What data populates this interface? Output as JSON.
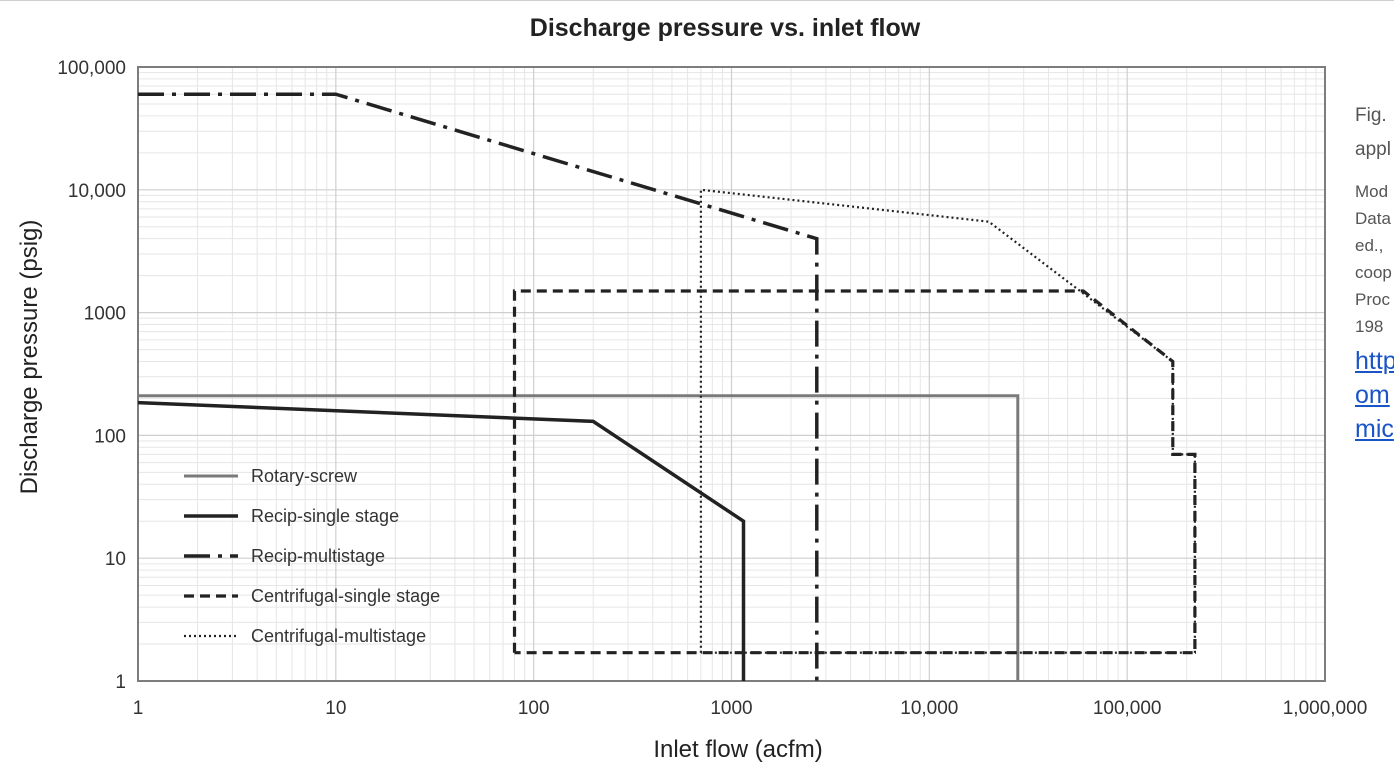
{
  "chart_data": {
    "type": "line",
    "title": "Discharge pressure vs. inlet flow",
    "xlabel": "Inlet flow (acfm)",
    "ylabel": "Discharge pressure (psig)",
    "x_scale": "log",
    "y_scale": "log",
    "xlim": [
      1,
      1000000
    ],
    "ylim": [
      1,
      100000
    ],
    "x_ticks": [
      1,
      10,
      100,
      1000,
      10000,
      100000,
      1000000
    ],
    "x_tick_labels": [
      "1",
      "10",
      "100",
      "1000",
      "10,000",
      "100,000",
      "1,000,000"
    ],
    "y_ticks": [
      1,
      10,
      100,
      1000,
      10000,
      100000
    ],
    "y_tick_labels": [
      "1",
      "10",
      "100",
      "1000",
      "10,000",
      "100,000"
    ],
    "grid": true,
    "legend_position": "lower-left",
    "series": [
      {
        "name": "Rotary-screw",
        "style": "solid-gray",
        "color": "#7a7a7a",
        "points": [
          [
            1,
            210
          ],
          [
            28000,
            210
          ],
          [
            28000,
            1
          ]
        ]
      },
      {
        "name": "Recip-single stage",
        "style": "solid",
        "color": "#222222",
        "points": [
          [
            1,
            185
          ],
          [
            200,
            130
          ],
          [
            1150,
            20
          ],
          [
            1150,
            1
          ]
        ]
      },
      {
        "name": "Recip-multistage",
        "style": "dash-dot",
        "color": "#222222",
        "points": [
          [
            1,
            60000
          ],
          [
            10,
            60000
          ],
          [
            2700,
            4000
          ],
          [
            2700,
            1
          ]
        ]
      },
      {
        "name": "Centrifugal-single stage",
        "style": "dashed",
        "color": "#222222",
        "points": [
          [
            80,
            1.7
          ],
          [
            80,
            1500
          ],
          [
            60000,
            1500
          ],
          [
            170000,
            400
          ],
          [
            170000,
            70
          ],
          [
            220000,
            70
          ],
          [
            220000,
            1.7
          ],
          [
            80,
            1.7
          ]
        ]
      },
      {
        "name": "Centrifugal-multistage",
        "style": "dotted",
        "color": "#222222",
        "points": [
          [
            700,
            1.7
          ],
          [
            700,
            10000
          ],
          [
            20000,
            5500
          ],
          [
            170000,
            400
          ],
          [
            170000,
            70
          ],
          [
            220000,
            70
          ],
          [
            220000,
            1.7
          ],
          [
            700,
            1.7
          ]
        ]
      }
    ]
  },
  "caption": {
    "fig": "Fig.",
    "fig_line2": "appl",
    "source_lines": [
      "Mod",
      "Data",
      "ed.,",
      "coop",
      "Proc",
      "198"
    ],
    "link_lines": [
      "http",
      "om",
      "mic"
    ]
  }
}
